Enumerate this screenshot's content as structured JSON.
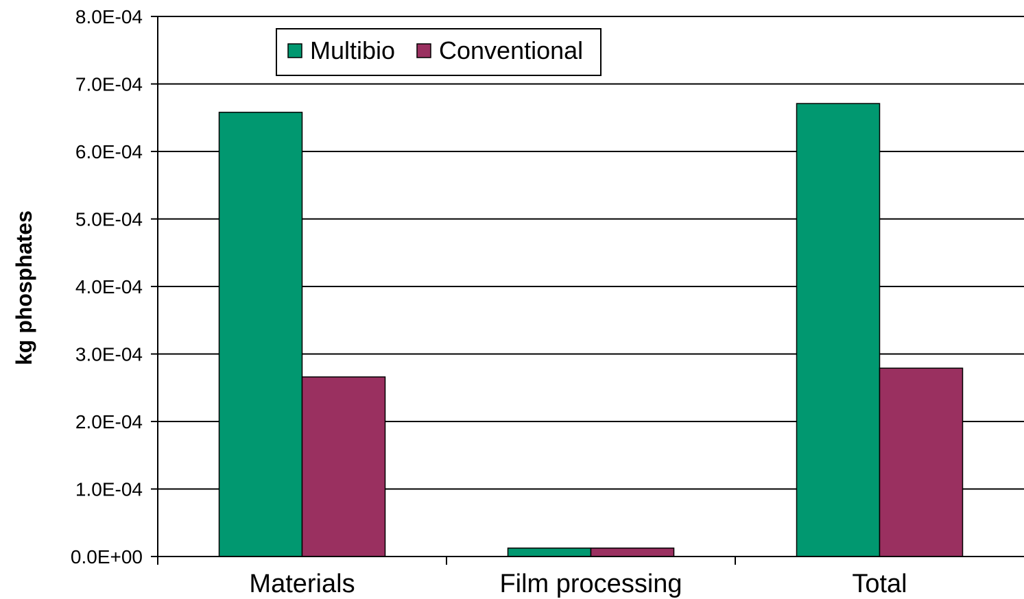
{
  "chart_data": {
    "type": "bar",
    "title": "",
    "xlabel": "",
    "ylabel": "kg phosphates",
    "categories": [
      "Materials",
      "Film processing",
      "Total"
    ],
    "series": [
      {
        "name": "Multibio",
        "values": [
          0.000658,
          1.25e-05,
          0.000671
        ],
        "color": "#019870"
      },
      {
        "name": "Conventional",
        "values": [
          0.000266,
          1.25e-05,
          0.000279
        ],
        "color": "#9a3060"
      }
    ],
    "ylim": [
      0,
      0.0008
    ],
    "yticks": [
      0,
      0.0001,
      0.0002,
      0.0003,
      0.0004,
      0.0005,
      0.0006,
      0.0007,
      0.0008
    ],
    "ytick_labels": [
      "0.0E+00",
      "1.0E-04",
      "2.0E-04",
      "3.0E-04",
      "4.0E-04",
      "5.0E-04",
      "6.0E-04",
      "7.0E-04",
      "8.0E-04"
    ],
    "grid": true,
    "legend_position": "top-left"
  }
}
